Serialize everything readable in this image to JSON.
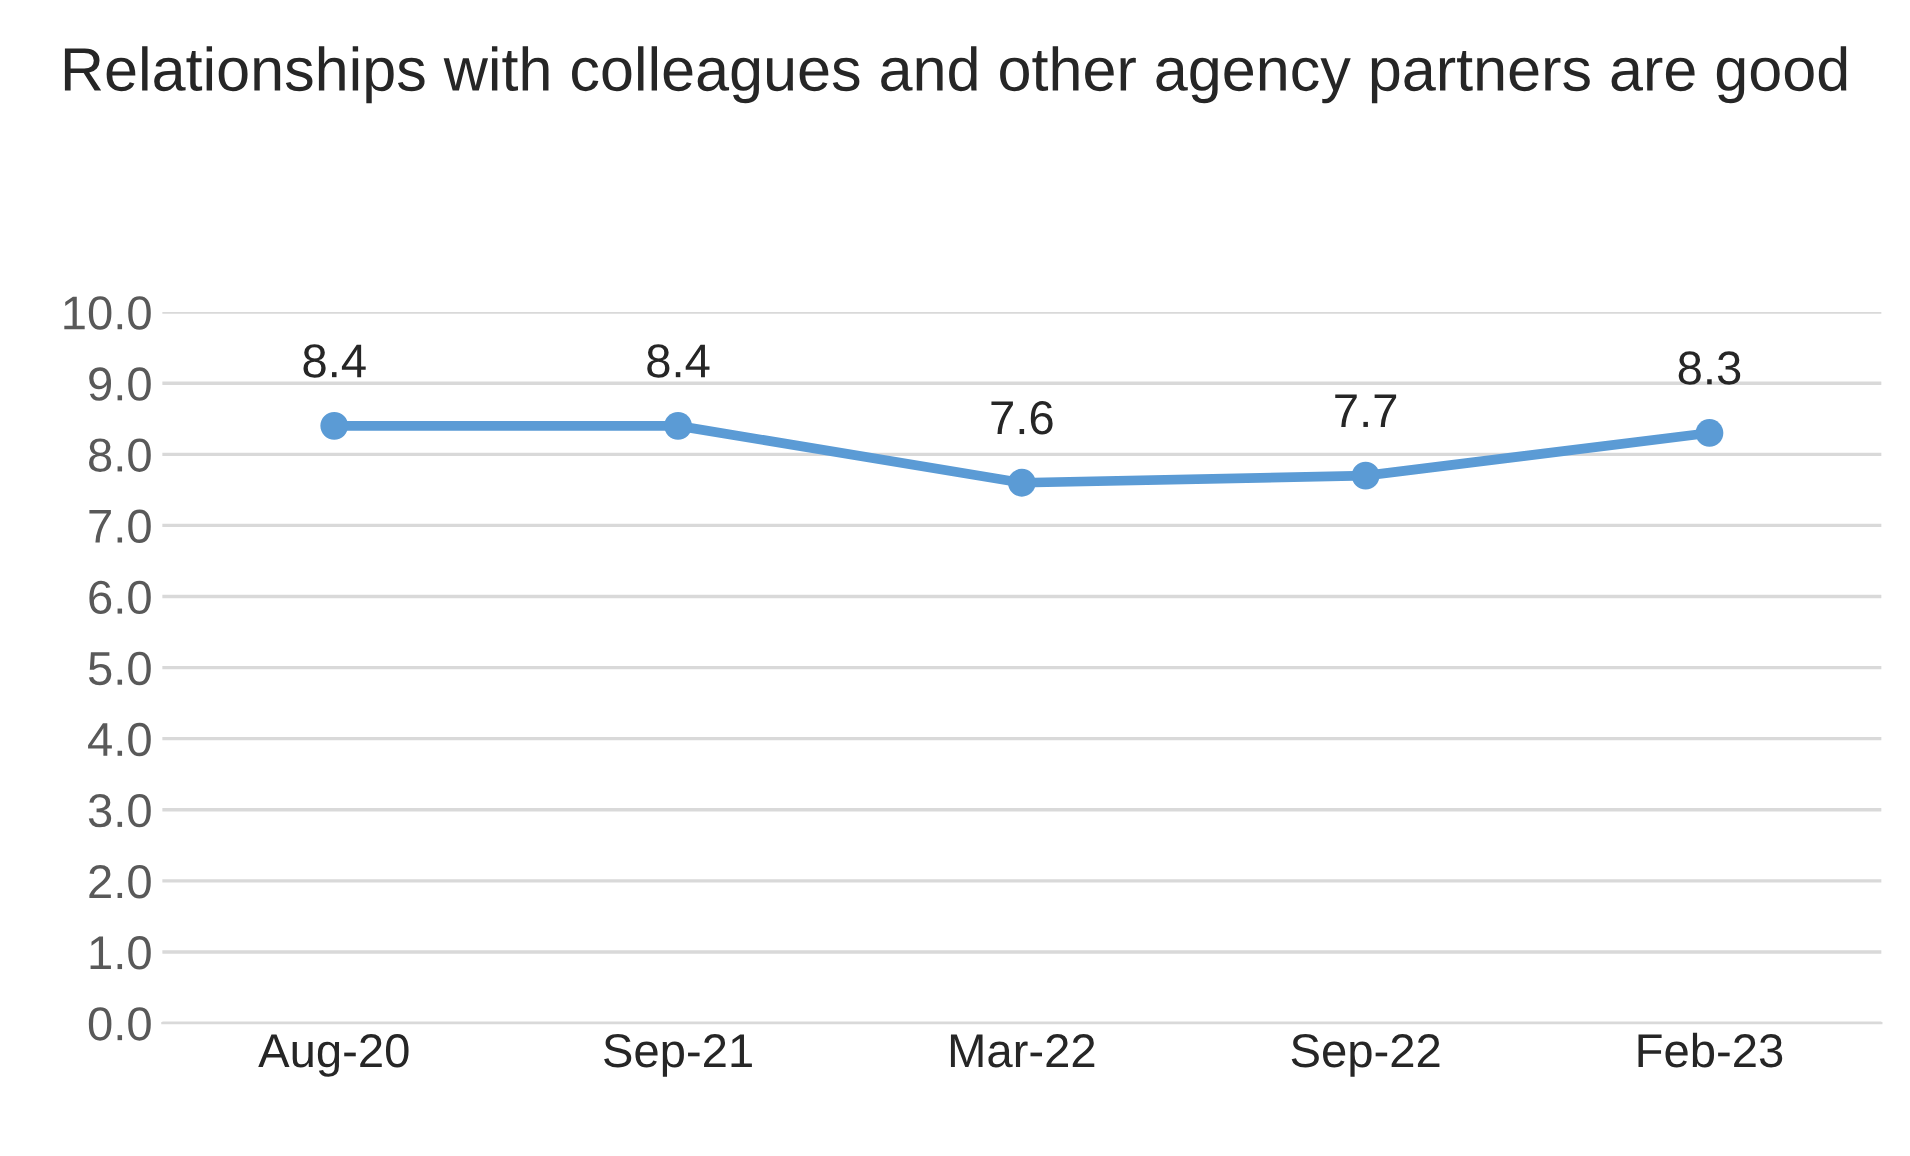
{
  "chart_data": {
    "type": "line",
    "title": "Relationships with colleagues and other agency partners are good",
    "categories": [
      "Aug-20",
      "Sep-21",
      "Mar-22",
      "Sep-22",
      "Feb-23"
    ],
    "series": [
      {
        "color": "#5b9bd5",
        "values": [
          8.4,
          8.4,
          7.6,
          7.7,
          8.3
        ]
      }
    ],
    "ylim": [
      0,
      10
    ],
    "yticks": [
      {
        "value": 0,
        "label": "0.0"
      },
      {
        "value": 1,
        "label": "1.0"
      },
      {
        "value": 2,
        "label": "2.0"
      },
      {
        "value": 3,
        "label": "3.0"
      },
      {
        "value": 4,
        "label": "4.0"
      },
      {
        "value": 5,
        "label": "5.0"
      },
      {
        "value": 6,
        "label": "6.0"
      },
      {
        "value": 7,
        "label": "7.0"
      },
      {
        "value": 8,
        "label": "8.0"
      },
      {
        "value": 9,
        "label": "9.0"
      },
      {
        "value": 10,
        "label": "10.0"
      }
    ],
    "grid": "y",
    "marker": "circle",
    "line_style": "solid",
    "data_labels": true
  }
}
